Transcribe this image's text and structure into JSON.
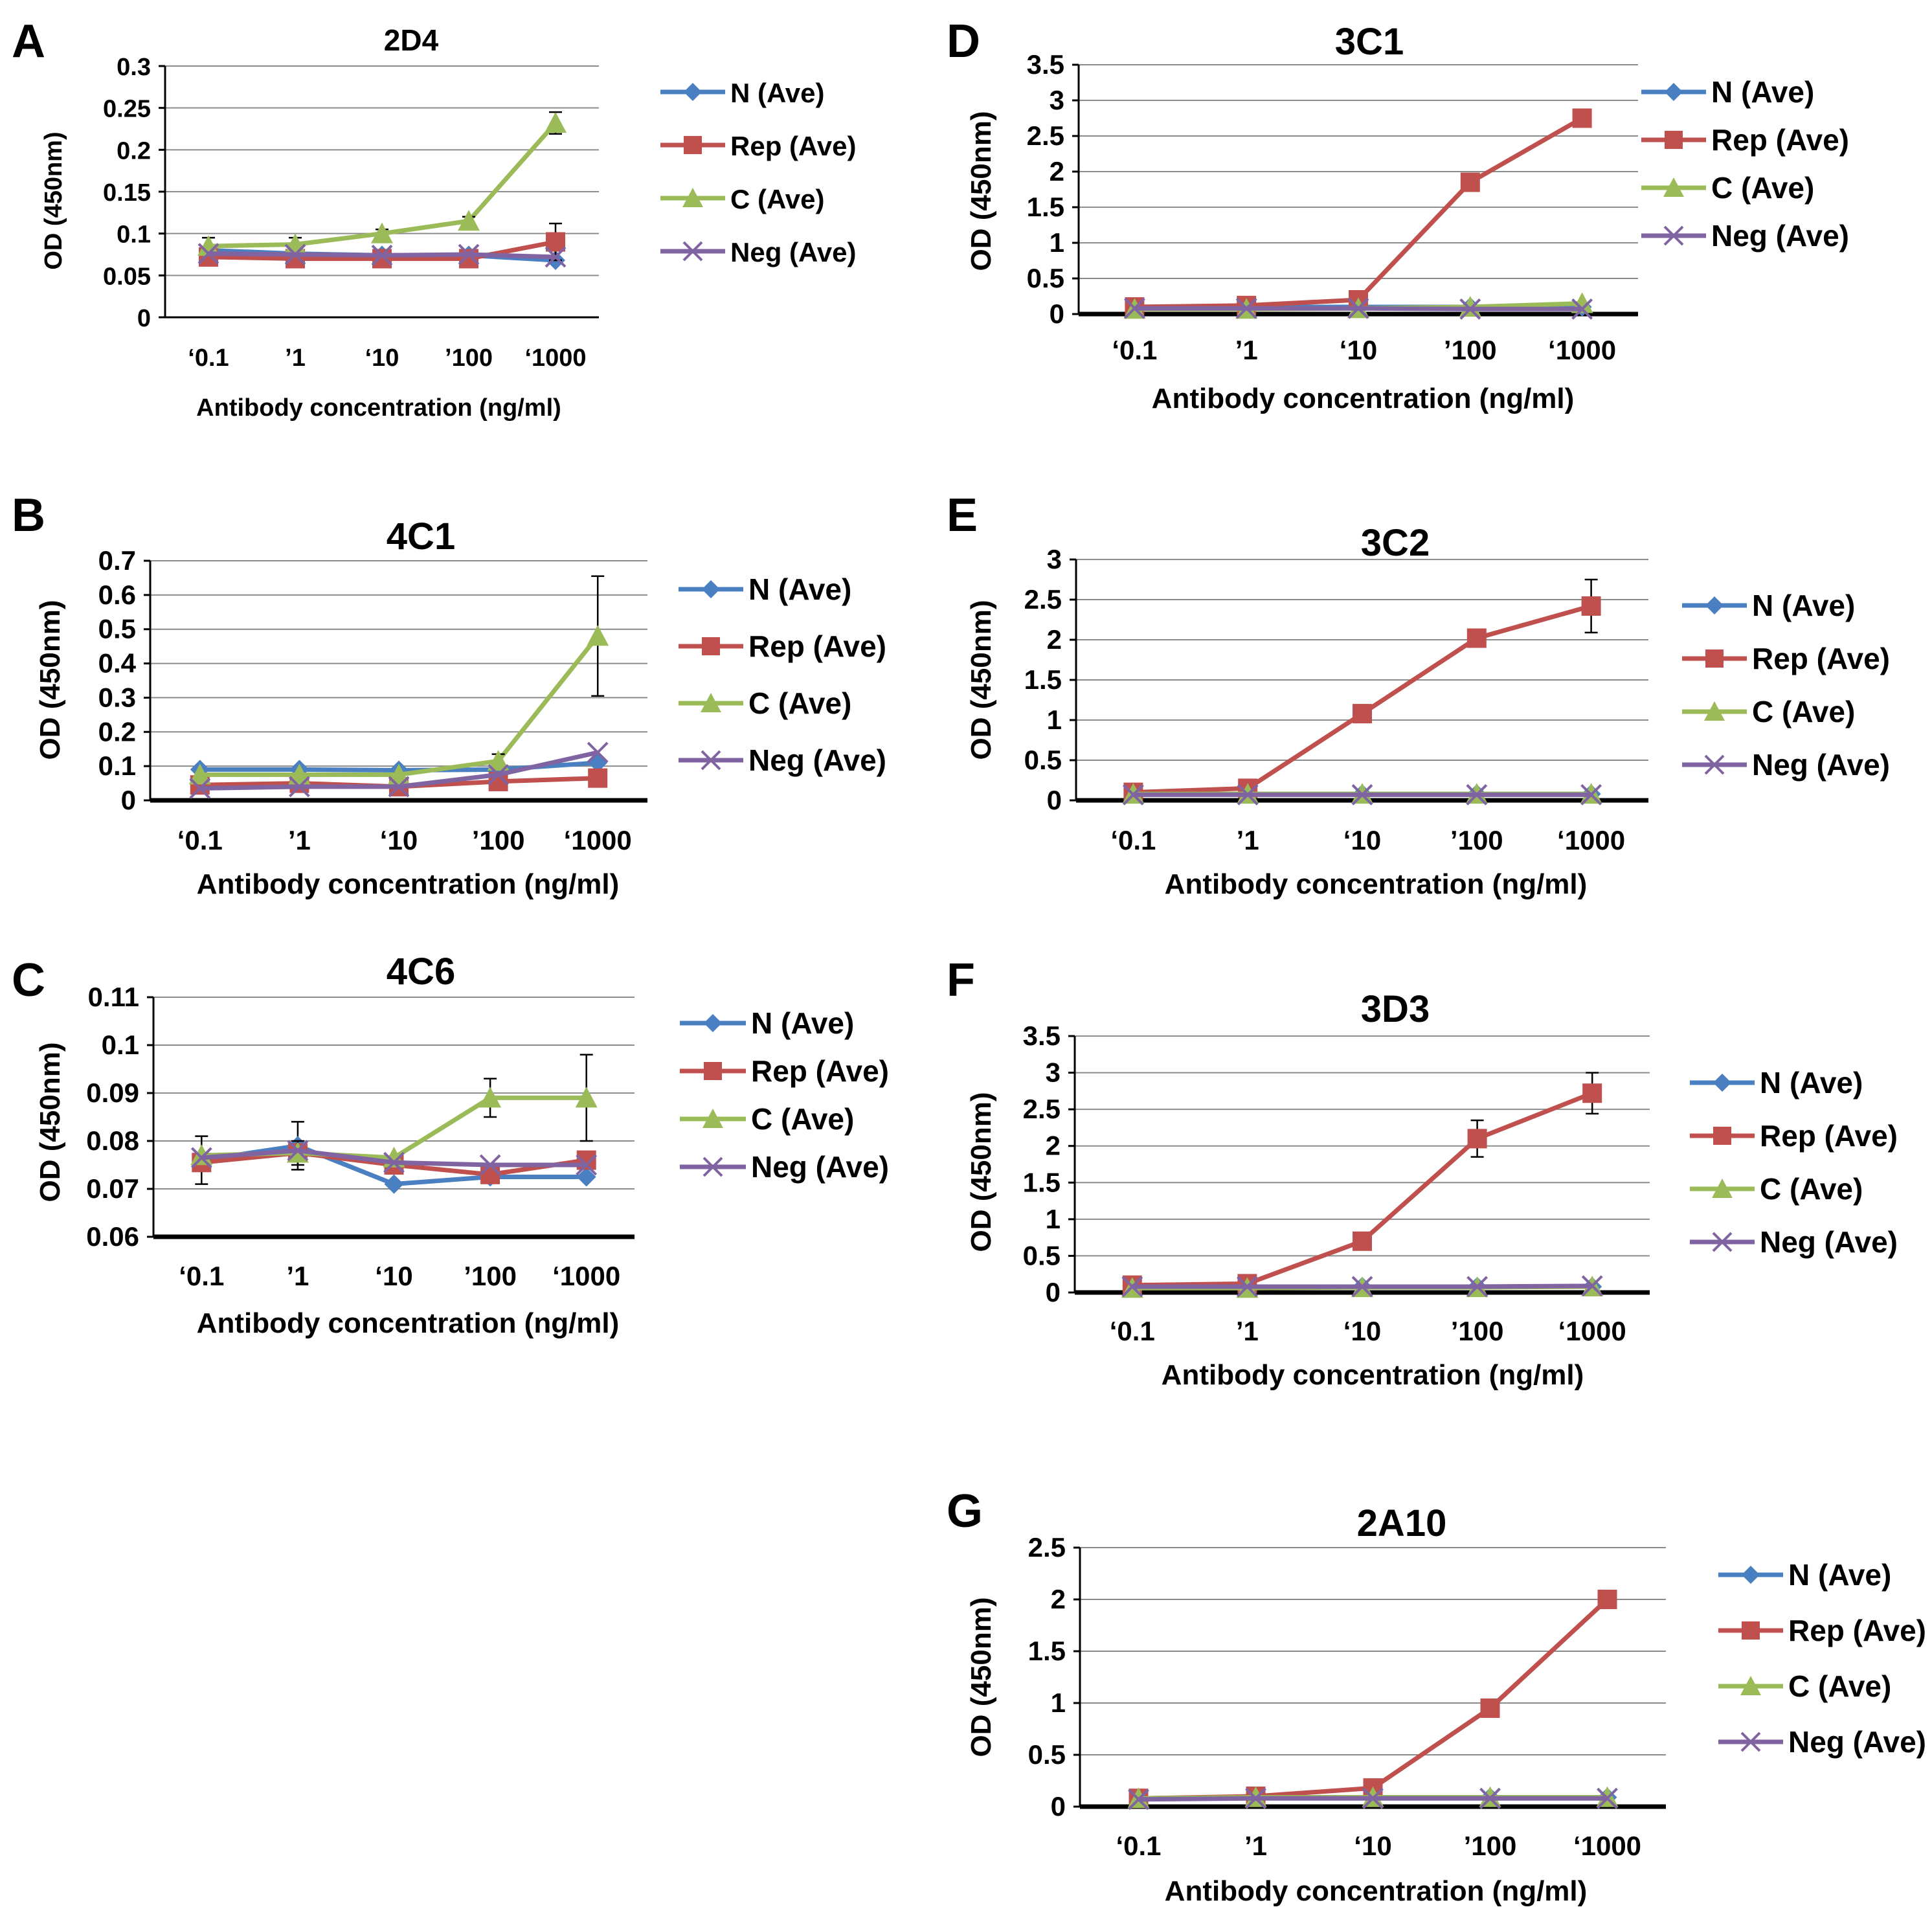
{
  "colors": {
    "N (Ave)": "#4a7fc1",
    "Rep (Ave)": "#c0504d",
    "C (Ave)": "#9bbb59",
    "Neg (Ave)": "#8064a2"
  },
  "chart_data": [
    {
      "panel": "A",
      "type": "line",
      "title": "2D4",
      "xlabel": "Antibody concentration (ng/ml)",
      "ylabel": "OD (450nm)",
      "categories": [
        "‘0.1",
        "’1",
        "‘10",
        "’100",
        "‘1000"
      ],
      "ylim": [
        0,
        0.3
      ],
      "yticks": [
        "0",
        "0.05",
        "0.1",
        "0.15",
        "0.2",
        "0.25",
        "0.3"
      ],
      "series": [
        {
          "name": "N (Ave)",
          "marker": "diamond",
          "values": [
            0.08,
            0.076,
            0.074,
            0.074,
            0.068
          ],
          "err": [
            0,
            0,
            0,
            0,
            0
          ]
        },
        {
          "name": "Rep (Ave)",
          "marker": "square",
          "values": [
            0.072,
            0.07,
            0.07,
            0.07,
            0.09
          ],
          "err": [
            0,
            0,
            0,
            0,
            0.022
          ]
        },
        {
          "name": "C (Ave)",
          "marker": "triangle",
          "values": [
            0.085,
            0.087,
            0.1,
            0.115,
            0.232
          ],
          "err": [
            0.01,
            0.008,
            0.005,
            0.005,
            0.013
          ]
        },
        {
          "name": "Neg (Ave)",
          "marker": "x",
          "values": [
            0.076,
            0.075,
            0.074,
            0.075,
            0.072
          ],
          "err": [
            0,
            0,
            0,
            0,
            0
          ]
        }
      ]
    },
    {
      "panel": "B",
      "type": "line",
      "title": "4C1",
      "xlabel": "Antibody concentration  (ng/ml)",
      "ylabel": "OD (450nm)",
      "categories": [
        "‘0.1",
        "’1",
        "‘10",
        "’100",
        "‘1000"
      ],
      "ylim": [
        0,
        0.7
      ],
      "yticks": [
        "0",
        "0.1",
        "0.2",
        "0.3",
        "0.4",
        "0.5",
        "0.6",
        "0.7"
      ],
      "series": [
        {
          "name": "N (Ave)",
          "marker": "diamond",
          "values": [
            0.09,
            0.09,
            0.088,
            0.09,
            0.11
          ],
          "err": [
            0,
            0,
            0,
            0,
            0
          ]
        },
        {
          "name": "Rep (Ave)",
          "marker": "square",
          "values": [
            0.045,
            0.05,
            0.04,
            0.055,
            0.065
          ],
          "err": [
            0,
            0,
            0,
            0,
            0
          ]
        },
        {
          "name": "C (Ave)",
          "marker": "triangle",
          "values": [
            0.075,
            0.075,
            0.075,
            0.115,
            0.48
          ],
          "err": [
            0,
            0,
            0,
            0.02,
            0.175
          ]
        },
        {
          "name": "Neg (Ave)",
          "marker": "x",
          "values": [
            0.035,
            0.04,
            0.04,
            0.075,
            0.14
          ],
          "err": [
            0,
            0,
            0,
            0,
            0
          ]
        }
      ]
    },
    {
      "panel": "C",
      "type": "line",
      "title": "4C6",
      "xlabel": "Antibody concentration  (ng/ml)",
      "ylabel": "OD (450nm)",
      "categories": [
        "‘0.1",
        "’1",
        "‘10",
        "’100",
        "‘1000"
      ],
      "ylim": [
        0.06,
        0.11
      ],
      "yticks": [
        "0.06",
        "0.07",
        "0.08",
        "0.09",
        "0.1",
        "0.11"
      ],
      "series": [
        {
          "name": "N (Ave)",
          "marker": "diamond",
          "values": [
            0.076,
            0.079,
            0.071,
            0.0725,
            0.0725
          ],
          "err": [
            0.005,
            0.005,
            0,
            0,
            0
          ]
        },
        {
          "name": "Rep (Ave)",
          "marker": "square",
          "values": [
            0.0755,
            0.0775,
            0.075,
            0.073,
            0.076
          ],
          "err": [
            0,
            0,
            0,
            0,
            0
          ]
        },
        {
          "name": "C (Ave)",
          "marker": "triangle",
          "values": [
            0.077,
            0.0775,
            0.0765,
            0.089,
            0.089
          ],
          "err": [
            0,
            0.0025,
            0,
            0.004,
            0.009
          ]
        },
        {
          "name": "Neg (Ave)",
          "marker": "x",
          "values": [
            0.0765,
            0.078,
            0.0755,
            0.075,
            0.075
          ],
          "err": [
            0,
            0,
            0,
            0,
            0
          ]
        }
      ]
    },
    {
      "panel": "D",
      "type": "line",
      "title": "3C1",
      "xlabel": "Antibody concentration  (ng/ml)",
      "ylabel": "OD (450nm)",
      "categories": [
        "‘0.1",
        "’1",
        "‘10",
        "’100",
        "‘1000"
      ],
      "ylim": [
        0,
        3.5
      ],
      "yticks": [
        "0",
        "0.5",
        "1",
        "1.5",
        "2",
        "2.5",
        "3",
        "3.5"
      ],
      "series": [
        {
          "name": "N (Ave)",
          "marker": "diamond",
          "values": [
            0.1,
            0.1,
            0.1,
            0.1,
            0.1
          ],
          "err": [
            0,
            0,
            0,
            0,
            0
          ]
        },
        {
          "name": "Rep (Ave)",
          "marker": "square",
          "values": [
            0.1,
            0.12,
            0.2,
            1.85,
            2.75
          ],
          "err": [
            0,
            0,
            0,
            0,
            0
          ]
        },
        {
          "name": "C (Ave)",
          "marker": "triangle",
          "values": [
            0.07,
            0.07,
            0.08,
            0.1,
            0.15
          ],
          "err": [
            0,
            0,
            0,
            0,
            0
          ]
        },
        {
          "name": "Neg (Ave)",
          "marker": "x",
          "values": [
            0.08,
            0.08,
            0.08,
            0.07,
            0.07
          ],
          "err": [
            0,
            0,
            0,
            0,
            0
          ]
        }
      ]
    },
    {
      "panel": "E",
      "type": "line",
      "title": "3C2",
      "xlabel": "Antibody concentration  (ng/ml)",
      "ylabel": "OD (450nm)",
      "categories": [
        "‘0.1",
        "’1",
        "‘10",
        "’100",
        "‘1000"
      ],
      "ylim": [
        0,
        3
      ],
      "yticks": [
        "0",
        "0.5",
        "1",
        "1.5",
        "2",
        "2.5",
        "3"
      ],
      "series": [
        {
          "name": "N (Ave)",
          "marker": "diamond",
          "values": [
            0.08,
            0.08,
            0.08,
            0.08,
            0.08
          ],
          "err": [
            0,
            0,
            0,
            0,
            0
          ]
        },
        {
          "name": "Rep (Ave)",
          "marker": "square",
          "values": [
            0.1,
            0.15,
            1.08,
            2.02,
            2.42
          ],
          "err": [
            0,
            0,
            0,
            0,
            0.33
          ]
        },
        {
          "name": "C (Ave)",
          "marker": "triangle",
          "values": [
            0.08,
            0.08,
            0.08,
            0.08,
            0.08
          ],
          "err": [
            0,
            0,
            0,
            0,
            0
          ]
        },
        {
          "name": "Neg (Ave)",
          "marker": "x",
          "values": [
            0.07,
            0.07,
            0.07,
            0.07,
            0.07
          ],
          "err": [
            0,
            0,
            0,
            0,
            0
          ]
        }
      ]
    },
    {
      "panel": "F",
      "type": "line",
      "title": "3D3",
      "xlabel": "Antibody concentration  (ng/ml)",
      "ylabel": "OD (450nm)",
      "categories": [
        "‘0.1",
        "’1",
        "‘10",
        "’100",
        "‘1000"
      ],
      "ylim": [
        0,
        3.5
      ],
      "yticks": [
        "0",
        "0.5",
        "1",
        "1.5",
        "2",
        "2.5",
        "3",
        "3.5"
      ],
      "series": [
        {
          "name": "N (Ave)",
          "marker": "diamond",
          "values": [
            0.08,
            0.08,
            0.08,
            0.08,
            0.08
          ],
          "err": [
            0,
            0,
            0,
            0,
            0
          ]
        },
        {
          "name": "Rep (Ave)",
          "marker": "square",
          "values": [
            0.1,
            0.12,
            0.7,
            2.1,
            2.72
          ],
          "err": [
            0,
            0,
            0,
            0.25,
            0.28
          ]
        },
        {
          "name": "C (Ave)",
          "marker": "triangle",
          "values": [
            0.06,
            0.06,
            0.07,
            0.07,
            0.08
          ],
          "err": [
            0,
            0,
            0,
            0,
            0
          ]
        },
        {
          "name": "Neg (Ave)",
          "marker": "x",
          "values": [
            0.08,
            0.08,
            0.08,
            0.08,
            0.09
          ],
          "err": [
            0,
            0,
            0,
            0,
            0
          ]
        }
      ]
    },
    {
      "panel": "G",
      "type": "line",
      "title": "2A10",
      "xlabel": "Antibody concentration  (ng/ml)",
      "ylabel": "OD (450nm)",
      "categories": [
        "‘0.1",
        "’1",
        "‘10",
        "’100",
        "‘1000"
      ],
      "ylim": [
        0,
        2.5
      ],
      "yticks": [
        "0",
        "0.5",
        "1",
        "1.5",
        "2",
        "2.5"
      ],
      "series": [
        {
          "name": "N (Ave)",
          "marker": "diamond",
          "values": [
            0.08,
            0.09,
            0.09,
            0.09,
            0.09
          ],
          "err": [
            0,
            0,
            0,
            0,
            0
          ]
        },
        {
          "name": "Rep (Ave)",
          "marker": "square",
          "values": [
            0.08,
            0.1,
            0.18,
            0.95,
            2.0
          ],
          "err": [
            0,
            0,
            0,
            0,
            0
          ]
        },
        {
          "name": "C (Ave)",
          "marker": "triangle",
          "values": [
            0.08,
            0.09,
            0.09,
            0.09,
            0.09
          ],
          "err": [
            0,
            0,
            0,
            0,
            0
          ]
        },
        {
          "name": "Neg (Ave)",
          "marker": "x",
          "values": [
            0.07,
            0.08,
            0.08,
            0.08,
            0.08
          ],
          "err": [
            0,
            0,
            0,
            0,
            0
          ]
        }
      ]
    }
  ]
}
